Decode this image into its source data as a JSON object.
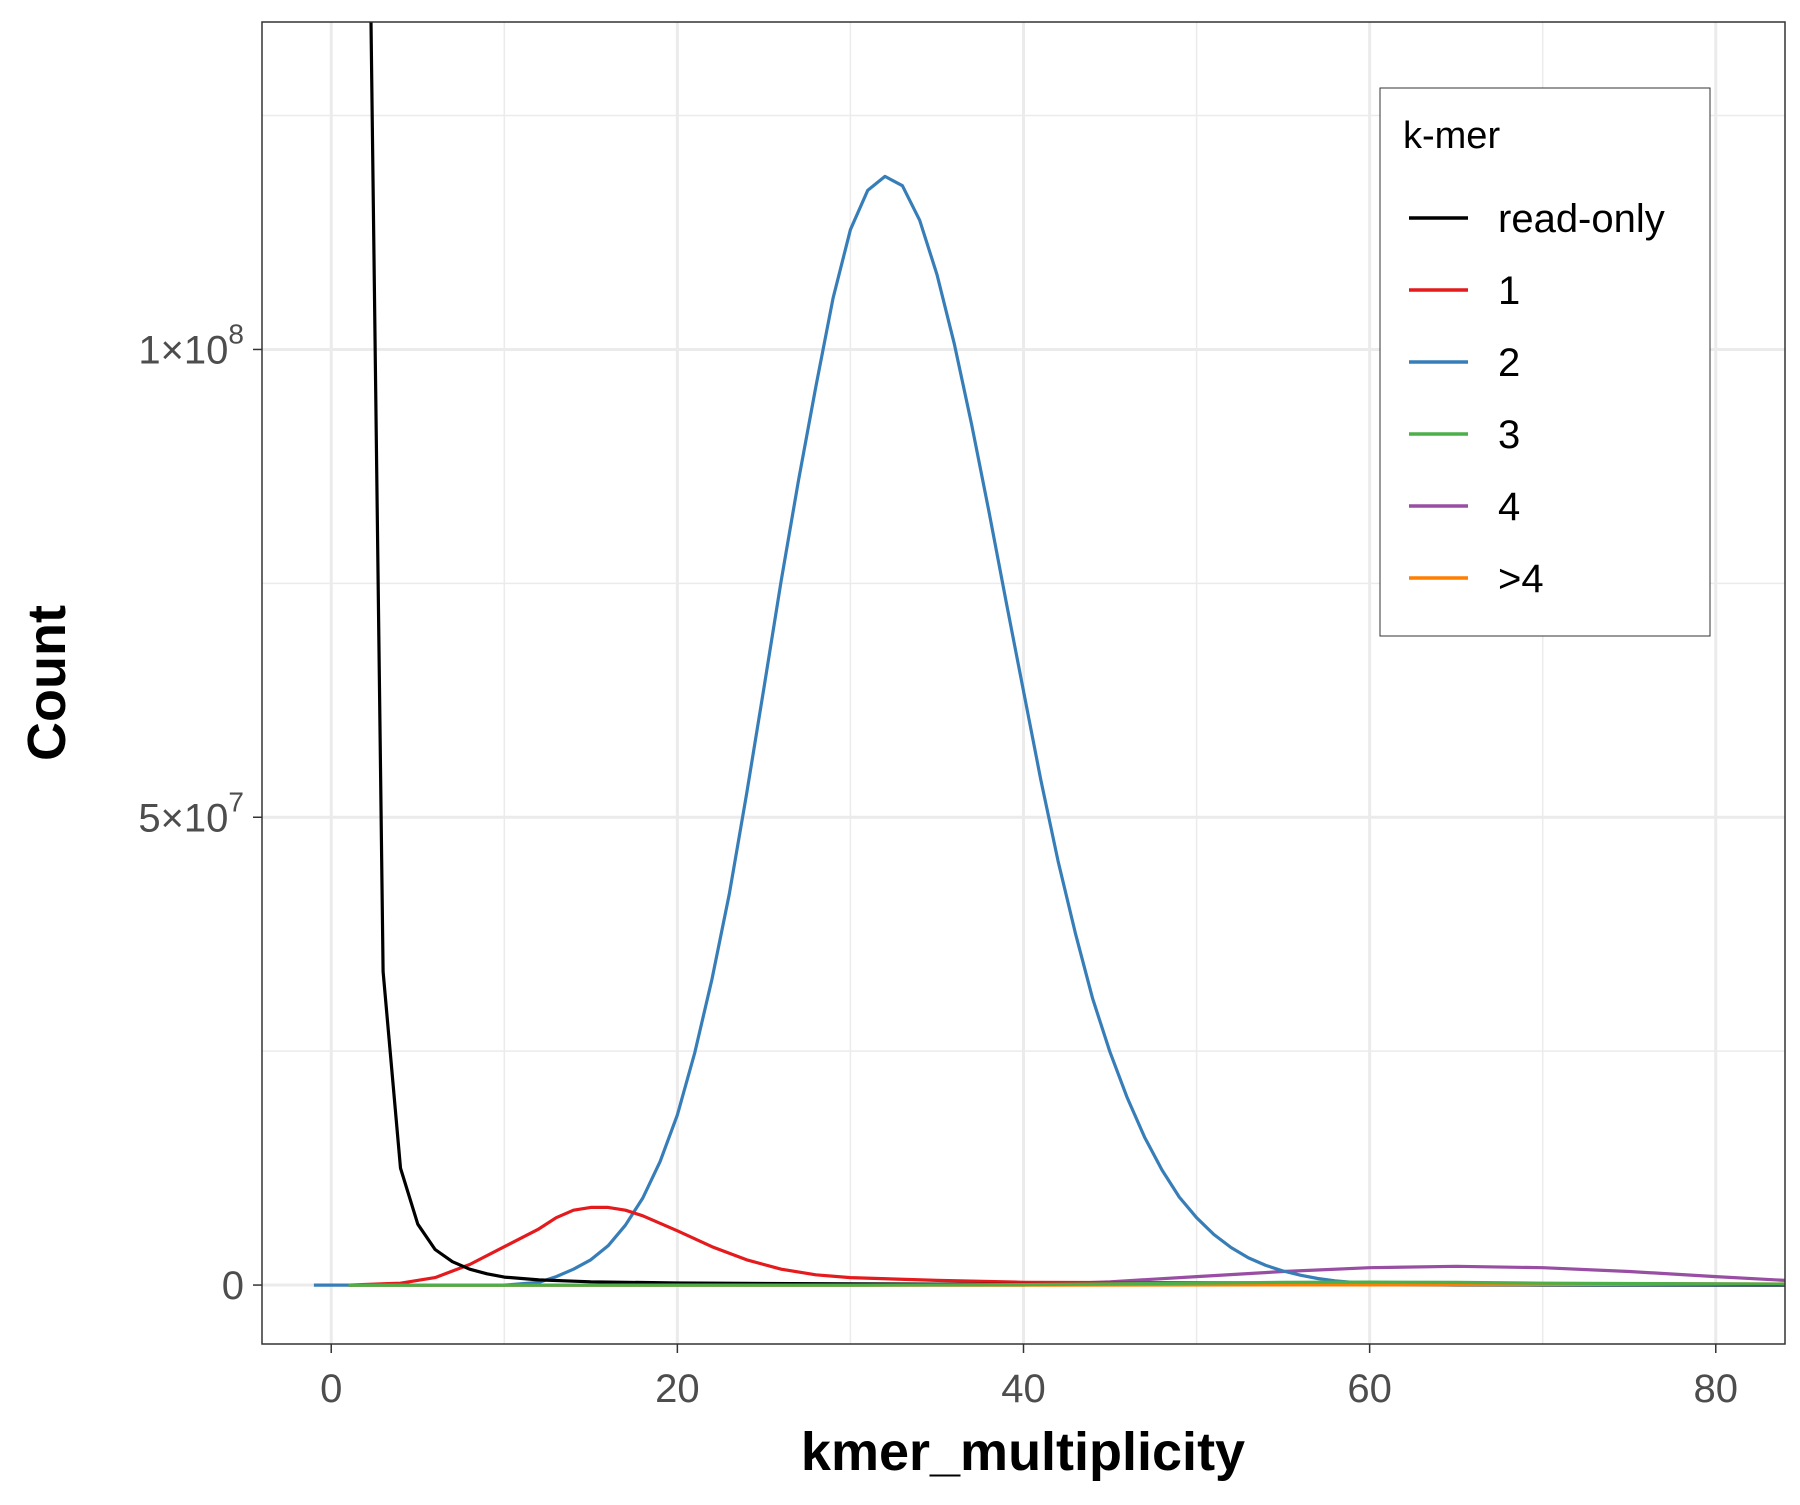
{
  "chart_data": {
    "type": "line",
    "title": "",
    "xlabel": "kmer_multiplicity",
    "ylabel": "Count",
    "xlim": [
      -4,
      84
    ],
    "ylim": [
      -6300000,
      135000000
    ],
    "x_ticks": [
      0,
      20,
      40,
      60,
      80
    ],
    "x_tick_labels": [
      "0",
      "20",
      "40",
      "60",
      "80"
    ],
    "y_ticks": [
      0,
      50000000,
      100000000
    ],
    "y_tick_labels": [
      {
        "mantissa": "0",
        "exponent": ""
      },
      {
        "mantissa": "5×10",
        "exponent": "7"
      },
      {
        "mantissa": "1×10",
        "exponent": "8"
      }
    ],
    "grid": true,
    "legend": {
      "title": "k-mer",
      "position": "top-right"
    },
    "series": [
      {
        "name": "read-only",
        "color": "#000000",
        "x": [
          2.3,
          3,
          4,
          5,
          6,
          7,
          8,
          9,
          10,
          12,
          15,
          20,
          30,
          40,
          84
        ],
        "y": [
          135000000,
          33500000,
          12500000,
          6500000,
          3800000,
          2500000,
          1700000,
          1200000,
          850000,
          550000,
          350000,
          220000,
          120000,
          60000,
          20000
        ]
      },
      {
        "name": "1",
        "color": "#e41a1c",
        "x": [
          1,
          4,
          6,
          8,
          10,
          12,
          13,
          14,
          15,
          16,
          17,
          18,
          20,
          22,
          24,
          26,
          28,
          30,
          35,
          40,
          84
        ],
        "y": [
          0,
          200000,
          800000,
          2200000,
          4100000,
          6000000,
          7200000,
          8000000,
          8300000,
          8300000,
          8000000,
          7400000,
          5800000,
          4100000,
          2700000,
          1700000,
          1100000,
          800000,
          500000,
          300000,
          100000
        ]
      },
      {
        "name": "2",
        "color": "#377eb8",
        "x": [
          -1,
          1,
          10,
          12,
          13,
          14,
          15,
          16,
          17,
          18,
          19,
          20,
          21,
          22,
          23,
          24,
          25,
          26,
          27,
          28,
          29,
          30,
          31,
          32,
          33,
          34,
          35,
          36,
          37,
          38,
          39,
          40,
          41,
          42,
          43,
          44,
          45,
          46,
          47,
          48,
          49,
          50,
          51,
          52,
          53,
          54,
          55,
          56,
          57,
          58,
          59,
          60,
          62,
          65,
          70,
          84
        ],
        "y": [
          0,
          0,
          0,
          300000,
          900000,
          1700000,
          2700000,
          4200000,
          6400000,
          9300000,
          13200000,
          18200000,
          24800000,
          32700000,
          41800000,
          52500000,
          63800000,
          75300000,
          86000000,
          96000000,
          105500000,
          112800000,
          117000000,
          118500000,
          117500000,
          113800000,
          108000000,
          100600000,
          92000000,
          82700000,
          73000000,
          63500000,
          54000000,
          45300000,
          37600000,
          30600000,
          24900000,
          20000000,
          15800000,
          12300000,
          9400000,
          7200000,
          5400000,
          4000000,
          2900000,
          2100000,
          1500000,
          1050000,
          700000,
          450000,
          280000,
          160000,
          60000,
          10000,
          0,
          0
        ]
      },
      {
        "name": "3",
        "color": "#4daf4a",
        "x": [
          1,
          10,
          20,
          30,
          40,
          50,
          55,
          60,
          65,
          70,
          84
        ],
        "y": [
          0,
          0,
          0,
          0,
          50000,
          200000,
          300000,
          320000,
          280000,
          200000,
          100000
        ]
      },
      {
        "name": "4",
        "color": "#984ea3",
        "x": [
          1,
          30,
          40,
          45,
          50,
          55,
          60,
          65,
          70,
          75,
          80,
          84
        ],
        "y": [
          0,
          0,
          10000,
          350000,
          900000,
          1450000,
          1850000,
          2000000,
          1850000,
          1450000,
          900000,
          500000
        ]
      },
      {
        "name": ">4",
        "color": "#ff7f00",
        "x": [
          1,
          20,
          40,
          60,
          70,
          80,
          84
        ],
        "y": [
          0,
          0,
          0,
          20000,
          60000,
          100000,
          120000
        ]
      }
    ]
  }
}
